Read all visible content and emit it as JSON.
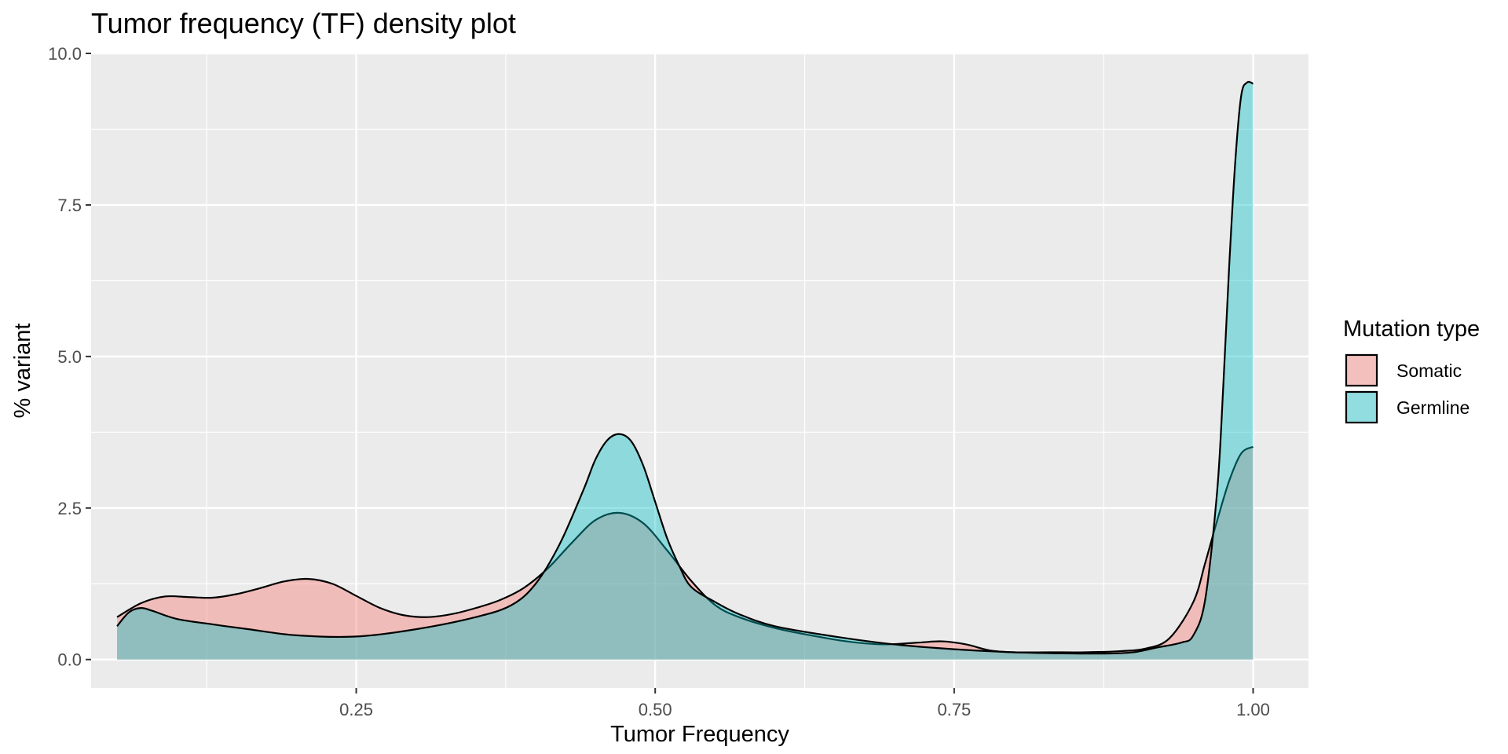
{
  "chart_data": {
    "type": "area",
    "title": "Tumor frequency (TF) density plot",
    "xlabel": "Tumor Frequency",
    "ylabel": "% variant",
    "xlim": [
      0.0283,
      1.0463
    ],
    "ylim": [
      -0.47,
      10.0
    ],
    "x_ticks": [
      0.25,
      0.5,
      0.75,
      1.0
    ],
    "x_tick_labels": [
      "0.25",
      "0.50",
      "0.75",
      "1.00"
    ],
    "y_ticks": [
      0.0,
      2.5,
      5.0,
      7.5,
      10.0
    ],
    "y_tick_labels": [
      "0.0",
      "2.5",
      "5.0",
      "7.5",
      "10.0"
    ],
    "grid": true,
    "legend": {
      "title": "Mutation type",
      "position": "right"
    },
    "series": [
      {
        "name": "Somatic",
        "color": "#F8766D",
        "x": [
          0.05,
          0.07,
          0.09,
          0.11,
          0.13,
          0.15,
          0.17,
          0.19,
          0.21,
          0.23,
          0.25,
          0.27,
          0.29,
          0.31,
          0.33,
          0.35,
          0.37,
          0.39,
          0.41,
          0.43,
          0.45,
          0.47,
          0.49,
          0.51,
          0.53,
          0.55,
          0.57,
          0.6,
          0.63,
          0.66,
          0.69,
          0.72,
          0.74,
          0.76,
          0.78,
          0.8,
          0.83,
          0.86,
          0.89,
          0.91,
          0.93,
          0.95,
          0.96,
          0.97,
          0.98,
          0.99,
          1.0
        ],
        "values": [
          0.7,
          0.93,
          1.04,
          1.03,
          1.02,
          1.08,
          1.18,
          1.29,
          1.33,
          1.25,
          1.05,
          0.85,
          0.73,
          0.7,
          0.75,
          0.85,
          0.98,
          1.18,
          1.5,
          1.92,
          2.3,
          2.42,
          2.25,
          1.8,
          1.3,
          0.9,
          0.7,
          0.52,
          0.4,
          0.3,
          0.25,
          0.28,
          0.3,
          0.25,
          0.15,
          0.12,
          0.12,
          0.12,
          0.14,
          0.18,
          0.35,
          0.95,
          1.6,
          2.3,
          2.95,
          3.4,
          3.51
        ]
      },
      {
        "name": "Germline",
        "color": "#00BFC4",
        "x": [
          0.05,
          0.06,
          0.07,
          0.08,
          0.1,
          0.13,
          0.16,
          0.2,
          0.25,
          0.3,
          0.35,
          0.38,
          0.4,
          0.42,
          0.44,
          0.45,
          0.46,
          0.47,
          0.48,
          0.49,
          0.5,
          0.51,
          0.52,
          0.53,
          0.55,
          0.57,
          0.6,
          0.65,
          0.7,
          0.75,
          0.8,
          0.85,
          0.88,
          0.9,
          0.92,
          0.94,
          0.95,
          0.96,
          0.97,
          0.975,
          0.98,
          0.985,
          0.99,
          0.995,
          1.0
        ],
        "values": [
          0.55,
          0.78,
          0.85,
          0.8,
          0.67,
          0.58,
          0.5,
          0.4,
          0.38,
          0.5,
          0.7,
          0.9,
          1.25,
          1.9,
          2.8,
          3.3,
          3.62,
          3.72,
          3.6,
          3.2,
          2.6,
          2.0,
          1.55,
          1.2,
          0.95,
          0.75,
          0.55,
          0.38,
          0.25,
          0.17,
          0.12,
          0.1,
          0.1,
          0.12,
          0.2,
          0.28,
          0.4,
          1.0,
          2.8,
          4.5,
          6.5,
          8.2,
          9.3,
          9.52,
          9.5
        ]
      }
    ]
  }
}
